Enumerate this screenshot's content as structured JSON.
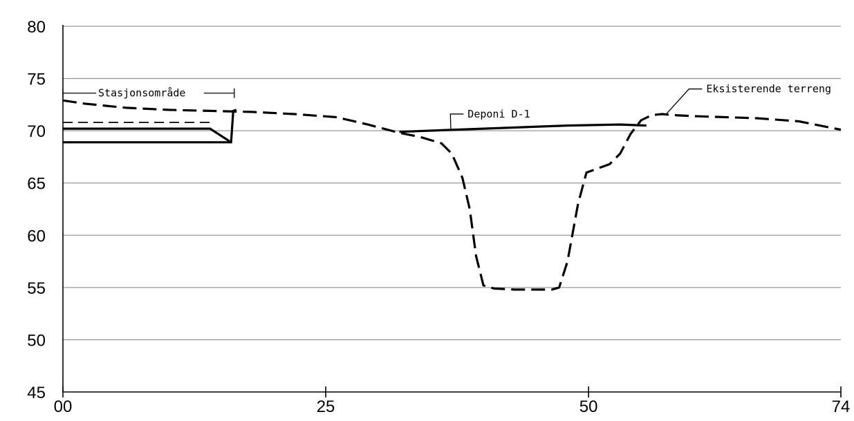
{
  "chart_data": {
    "type": "line",
    "xlim": [
      0,
      74
    ],
    "ylim": [
      45,
      80
    ],
    "grid": true,
    "x_ticks": [
      {
        "value": 0,
        "label": "00"
      },
      {
        "value": 25,
        "label": "25"
      },
      {
        "value": 50,
        "label": "50"
      },
      {
        "value": 74,
        "label": "74"
      }
    ],
    "y_ticks": [
      {
        "value": 45,
        "label": "45"
      },
      {
        "value": 50,
        "label": "50"
      },
      {
        "value": 55,
        "label": "55"
      },
      {
        "value": 60,
        "label": "60"
      },
      {
        "value": 65,
        "label": "65"
      },
      {
        "value": 70,
        "label": "70"
      },
      {
        "value": 75,
        "label": "75"
      },
      {
        "value": 80,
        "label": "80"
      }
    ],
    "series": [
      {
        "name": "Eksisterende terreng",
        "style": "dashed",
        "x": [
          0,
          2,
          4,
          6,
          8,
          10,
          14,
          18,
          22,
          26,
          29,
          32,
          34,
          36,
          37,
          38,
          38.7,
          39.3,
          40,
          41,
          43,
          45,
          46.5,
          47.2,
          48,
          49,
          49.8,
          52,
          53,
          54,
          55,
          56,
          57,
          58,
          60,
          63,
          66,
          70,
          72,
          74
        ],
        "y": [
          72.9,
          72.6,
          72.4,
          72.2,
          72.1,
          72.0,
          71.9,
          71.8,
          71.6,
          71.3,
          70.6,
          69.8,
          69.4,
          68.8,
          67.8,
          65.5,
          62.5,
          58.0,
          55.2,
          54.9,
          54.8,
          54.8,
          54.8,
          55.0,
          57.5,
          63.0,
          66.0,
          66.8,
          67.8,
          69.7,
          71.0,
          71.5,
          71.6,
          71.5,
          71.4,
          71.3,
          71.2,
          70.9,
          70.5,
          70.1
        ]
      },
      {
        "name": "Deponi D-1",
        "style": "solid",
        "x": [
          32,
          40,
          48,
          53,
          55.5
        ],
        "y": [
          69.9,
          70.2,
          70.5,
          70.6,
          70.5
        ]
      },
      {
        "style": "solid",
        "x": [
          0,
          16,
          16.2,
          16.5
        ],
        "y": [
          68.9,
          68.9,
          71.9,
          72.0
        ]
      },
      {
        "style": "solid",
        "x": [
          0,
          14,
          16
        ],
        "y": [
          70.2,
          70.2,
          68.9
        ]
      },
      {
        "style": "dashed-thin",
        "x": [
          0,
          14
        ],
        "y": [
          70.8,
          70.8
        ]
      }
    ],
    "annotations": [
      {
        "text": "Stasjonsområde",
        "x_start": 0,
        "x_end": 16.3,
        "y": 73.6,
        "type": "dimension"
      },
      {
        "text": "Deponi D-1",
        "x": 38.5,
        "y": 71.6,
        "leader_to": [
          36.9,
          70.1
        ],
        "type": "leader"
      },
      {
        "text": "Eksisterende terreng",
        "x": 61.2,
        "y": 74.0,
        "leader_to": [
          57.3,
          71.5
        ],
        "type": "leader"
      }
    ]
  }
}
